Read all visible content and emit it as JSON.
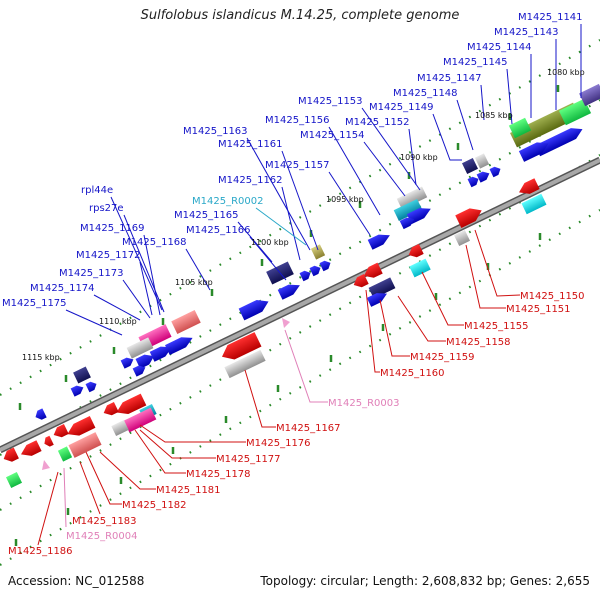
{
  "title": "Sulfolobus islandicus M.14.25, complete genome",
  "footer": {
    "accession": "Accession: NC_012588",
    "summary": "Topology: circular; Length: 2,608,832 bp; Genes: 2,655"
  },
  "colors": {
    "top_label": "#1515c8",
    "bottom_label": "#d01010",
    "rna_top_label": "#2aa8c8",
    "rna_bottom_label": "#e080b8",
    "backbone": "#8a8a8a",
    "tick": "#2a8a2a"
  },
  "scale_labels": [
    "1080 kbp",
    "1085 kbp",
    "1090 kbp",
    "1095 kbp",
    "1100 kbp",
    "1105 kbp",
    "1110 kbp",
    "1115 kbp"
  ],
  "top_labels": [
    "M1425_1141",
    "M1425_1143",
    "M1425_1144",
    "M1425_1145",
    "M1425_1147",
    "M1425_1148",
    "M1425_1149",
    "M1425_1153",
    "M1425_1156",
    "M1425_1152",
    "M1425_1154",
    "M1425_1163",
    "M1425_1161",
    "M1425_1157",
    "M1425_1162",
    "M1425_R0002",
    "M1425_1165",
    "M1425_1166",
    "rpl44e",
    "rps27e",
    "M1425_1169",
    "M1425_1168",
    "M1425_1172",
    "M1425_1173",
    "M1425_1174",
    "M1425_1175"
  ],
  "bottom_labels": [
    "M1425_1150",
    "M1425_1151",
    "M1425_1155",
    "M1425_1158",
    "M1425_1159",
    "M1425_1160",
    "M1425_R0003",
    "M1425_1167",
    "M1425_1176",
    "M1425_1177",
    "M1425_1178",
    "M1425_1181",
    "M1425_1182",
    "M1425_1183",
    "M1425_R0004",
    "M1425_1186"
  ]
}
